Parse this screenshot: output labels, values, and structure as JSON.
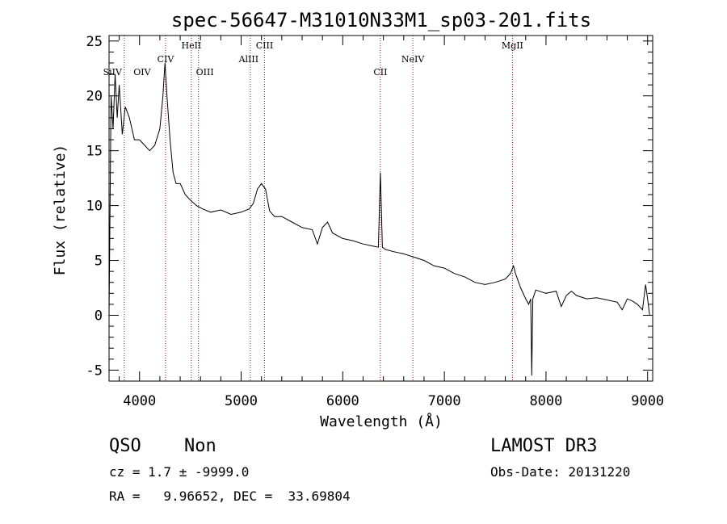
{
  "chart_data": {
    "type": "line",
    "title": "spec-56647-M31010N33M1_sp03-201.fits",
    "xlabel": "Wavelength (Å)",
    "ylabel": "Flux (relative)",
    "xlim": [
      3700,
      9050
    ],
    "ylim": [
      -6,
      25.5
    ],
    "xticks": [
      4000,
      5000,
      6000,
      7000,
      8000,
      9000
    ],
    "yticks": [
      -5,
      0,
      5,
      10,
      15,
      20,
      25
    ],
    "series": [
      {
        "name": "flux",
        "x": [
          3700,
          3720,
          3740,
          3760,
          3780,
          3800,
          3830,
          3860,
          3900,
          3950,
          4000,
          4050,
          4100,
          4150,
          4200,
          4230,
          4250,
          4270,
          4300,
          4330,
          4360,
          4400,
          4450,
          4500,
          4560,
          4620,
          4700,
          4800,
          4900,
          5000,
          5080,
          5120,
          5160,
          5200,
          5240,
          5280,
          5330,
          5400,
          5500,
          5600,
          5700,
          5750,
          5800,
          5850,
          5900,
          6000,
          6100,
          6200,
          6300,
          6350,
          6370,
          6390,
          6420,
          6500,
          6600,
          6700,
          6800,
          6900,
          7000,
          7100,
          7200,
          7300,
          7400,
          7500,
          7600,
          7650,
          7680,
          7700,
          7750,
          7800,
          7830,
          7850,
          7860,
          7870,
          7900,
          8000,
          8100,
          8150,
          8200,
          8250,
          8300,
          8400,
          8500,
          8600,
          8700,
          8750,
          8800,
          8850,
          8900,
          8950,
          8980,
          9000,
          9020
        ],
        "y": [
          0,
          20,
          17,
          22,
          18,
          21,
          16.5,
          19,
          18,
          16,
          16,
          15.5,
          15,
          15.5,
          17,
          20,
          23,
          20,
          16,
          13,
          12,
          12,
          11,
          10.5,
          10,
          9.7,
          9.4,
          9.6,
          9.2,
          9.4,
          9.7,
          10.2,
          11.5,
          12,
          11.5,
          9.5,
          9,
          9,
          8.5,
          8,
          7.8,
          6.5,
          8,
          8.5,
          7.5,
          7,
          6.8,
          6.5,
          6.3,
          6.2,
          13,
          6.2,
          6,
          5.8,
          5.6,
          5.3,
          5,
          4.5,
          4.3,
          3.8,
          3.5,
          3,
          2.8,
          3,
          3.3,
          3.8,
          4.5,
          3.8,
          2.5,
          1.5,
          1,
          1.5,
          -5.5,
          1.5,
          2.3,
          2,
          2.2,
          0.8,
          1.8,
          2.2,
          1.8,
          1.5,
          1.6,
          1.4,
          1.2,
          0.5,
          1.5,
          1.3,
          1,
          0.5,
          2.8,
          1.5,
          0
        ]
      }
    ],
    "lines": [
      {
        "label": "SiIV",
        "wavelength": 3845
      },
      {
        "label": "OIV",
        "wavelength": 3850
      },
      {
        "label": "CIV",
        "wavelength": 4256
      },
      {
        "label": "HeII",
        "wavelength": 4510
      },
      {
        "label": "OIII",
        "wavelength": 4580
      },
      {
        "label": "AlIII",
        "wavelength": 5090
      },
      {
        "label": "CIII",
        "wavelength": 5230
      },
      {
        "label": "CII",
        "wavelength": 6370
      },
      {
        "label": "NeIV",
        "wavelength": 6690
      },
      {
        "label": "MgII",
        "wavelength": 7670
      }
    ]
  },
  "info": {
    "class": "QSO",
    "subclass": "Non",
    "survey": "LAMOST DR3",
    "cz": "cz = 1.7 ± -9999.0",
    "obs_date": "Obs-Date: 20131220",
    "coords": "RA =   9.96652, DEC =  33.69804"
  },
  "colors": {
    "line_marker": "#8b1a1a",
    "spectrum": "#000000"
  }
}
